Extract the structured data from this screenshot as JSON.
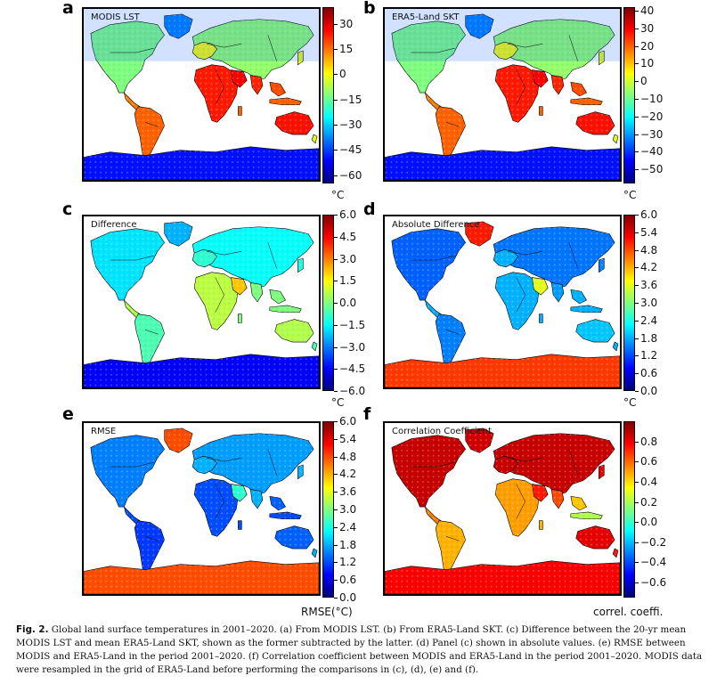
{
  "figure": {
    "caption_label": "Fig. 2.",
    "caption_text": "Global land surface temperatures in 2001–2020. (a) From MODIS LST. (b) From ERA5-Land SKT. (c) Difference between the 20-yr mean MODIS LST and mean ERA5-Land SKT, shown as the former subtracted by the latter. (d) Panel (c) shown in absolute values. (e) RMSE between MODIS and ERA5-Land in the period 2001–2020. (f) Correlation coefficient between MODIS and ERA5-Land in the period 2001–2020. MODIS data were resampled in the grid of ERA5-Land before performing the comparisons in (c), (d), (e) and (f)."
  },
  "colors": {
    "map_land_style": "temperature",
    "jet": [
      "#00007f",
      "#0000ff",
      "#007fff",
      "#00ffff",
      "#7fff7f",
      "#ffff00",
      "#ff7f00",
      "#ff0000",
      "#7f0000"
    ]
  },
  "panels": [
    {
      "letter": "a",
      "title": "MODIS LST",
      "unit": "°C",
      "style": "temp",
      "colorbar": {
        "min": -65,
        "max": 40,
        "ticks": [
          "30",
          "15",
          "0",
          "−15",
          "−30",
          "−45",
          "−60"
        ],
        "tick_values": [
          30,
          15,
          0,
          -15,
          -30,
          -45,
          -60
        ]
      }
    },
    {
      "letter": "b",
      "title": "ERA5-Land SKT",
      "unit": "°C",
      "style": "temp",
      "colorbar": {
        "min": -58,
        "max": 42,
        "ticks": [
          "40",
          "30",
          "20",
          "10",
          "0",
          "−10",
          "−20",
          "−30",
          "−40",
          "−50"
        ],
        "tick_values": [
          40,
          30,
          20,
          10,
          0,
          -10,
          -20,
          -30,
          -40,
          -50
        ]
      }
    },
    {
      "letter": "c",
      "title": "Difference",
      "unit": "°C",
      "style": "diff",
      "colorbar": {
        "min": -6,
        "max": 6,
        "ticks": [
          "6.0",
          "4.5",
          "3.0",
          "1.5",
          "0.0",
          "−1.5",
          "−3.0",
          "−4.5",
          "−6.0"
        ],
        "tick_values": [
          6,
          4.5,
          3,
          1.5,
          0,
          -1.5,
          -3,
          -4.5,
          -6
        ]
      }
    },
    {
      "letter": "d",
      "title": "Absolute Difference",
      "unit": "°C",
      "style": "absdiff",
      "colorbar": {
        "min": 0,
        "max": 6,
        "ticks": [
          "6.0",
          "5.4",
          "4.8",
          "4.2",
          "3.6",
          "3.0",
          "2.4",
          "1.8",
          "1.2",
          "0.6",
          "0.0"
        ],
        "tick_values": [
          6,
          5.4,
          4.8,
          4.2,
          3.6,
          3,
          2.4,
          1.8,
          1.2,
          0.6,
          0
        ]
      }
    },
    {
      "letter": "e",
      "title": "RMSE",
      "unit": "RMSE(°C)",
      "style": "rmse",
      "colorbar": {
        "min": 0,
        "max": 6,
        "ticks": [
          "6.0",
          "5.4",
          "4.8",
          "4.2",
          "3.6",
          "3.0",
          "2.4",
          "1.8",
          "1.2",
          "0.6",
          "0.0"
        ],
        "tick_values": [
          6,
          5.4,
          4.8,
          4.2,
          3.6,
          3,
          2.4,
          1.8,
          1.2,
          0.6,
          0
        ]
      }
    },
    {
      "letter": "f",
      "title": "Correlation Coefficient",
      "unit": "correl. coeffi.",
      "style": "corr",
      "colorbar": {
        "min": -0.75,
        "max": 1.0,
        "ticks": [
          "0.8",
          "0.6",
          "0.4",
          "0.2",
          "0.0",
          "−0.2",
          "−0.4",
          "−0.6"
        ],
        "tick_values": [
          0.8,
          0.6,
          0.4,
          0.2,
          0,
          -0.2,
          -0.4,
          -0.6
        ]
      }
    }
  ]
}
